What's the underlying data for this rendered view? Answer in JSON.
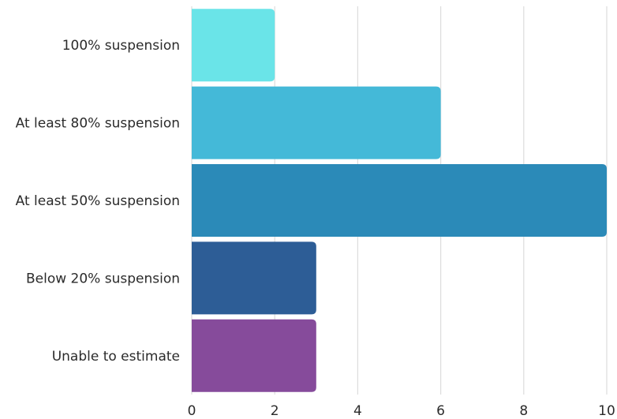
{
  "chart_data": {
    "type": "bar",
    "orientation": "horizontal",
    "categories": [
      "100% suspension",
      "At least 80% suspension",
      "At least 50% suspension",
      "Below 20% suspension",
      "Unable to estimate"
    ],
    "values": [
      2,
      6,
      10,
      3,
      3
    ],
    "colors": [
      "#6ae4e8",
      "#44b9d8",
      "#2b8ab8",
      "#2d5d96",
      "#864b9b"
    ],
    "xlim": [
      0,
      10
    ],
    "xticks": [
      "0",
      "2",
      "4",
      "6",
      "8",
      "10"
    ],
    "grid": "vertical",
    "legend": "none"
  }
}
